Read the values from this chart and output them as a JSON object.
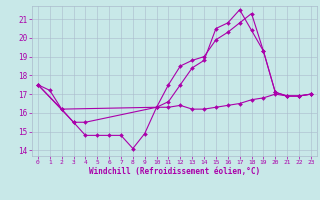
{
  "background_color": "#c8e8e8",
  "grid_color": "#aabbcc",
  "line_color": "#aa00aa",
  "xlabel": "Windchill (Refroidissement éolien,°C)",
  "xlim": [
    -0.5,
    23.5
  ],
  "ylim": [
    13.7,
    21.7
  ],
  "yticks": [
    14,
    15,
    16,
    17,
    18,
    19,
    20,
    21
  ],
  "xticks": [
    0,
    1,
    2,
    3,
    4,
    5,
    6,
    7,
    8,
    9,
    10,
    11,
    12,
    13,
    14,
    15,
    16,
    17,
    18,
    19,
    20,
    21,
    22,
    23
  ],
  "series": [
    {
      "x": [
        0,
        1,
        2,
        3,
        4,
        5,
        6,
        7,
        8,
        9,
        10,
        11,
        12,
        13,
        14,
        15,
        16,
        17,
        18,
        19,
        20,
        21,
        22,
        23
      ],
      "y": [
        17.5,
        17.2,
        16.2,
        15.5,
        14.8,
        14.8,
        14.8,
        14.8,
        14.1,
        14.9,
        16.3,
        16.3,
        16.4,
        16.2,
        16.2,
        16.3,
        16.4,
        16.5,
        16.7,
        16.8,
        17.0,
        16.9,
        16.9,
        17.0
      ]
    },
    {
      "x": [
        0,
        2,
        10,
        11,
        12,
        13,
        14,
        15,
        16,
        17,
        18,
        19,
        20,
        21,
        22,
        23
      ],
      "y": [
        17.5,
        16.2,
        16.3,
        17.5,
        18.5,
        18.8,
        19.0,
        19.9,
        20.3,
        20.8,
        21.3,
        19.3,
        17.1,
        16.9,
        16.9,
        17.0
      ]
    },
    {
      "x": [
        0,
        3,
        4,
        10,
        11,
        12,
        13,
        14,
        15,
        16,
        17,
        18,
        19,
        20,
        21,
        22,
        23
      ],
      "y": [
        17.5,
        15.5,
        15.5,
        16.3,
        16.6,
        17.5,
        18.4,
        18.8,
        20.5,
        20.8,
        21.5,
        20.4,
        19.3,
        17.1,
        16.9,
        16.9,
        17.0
      ]
    }
  ]
}
